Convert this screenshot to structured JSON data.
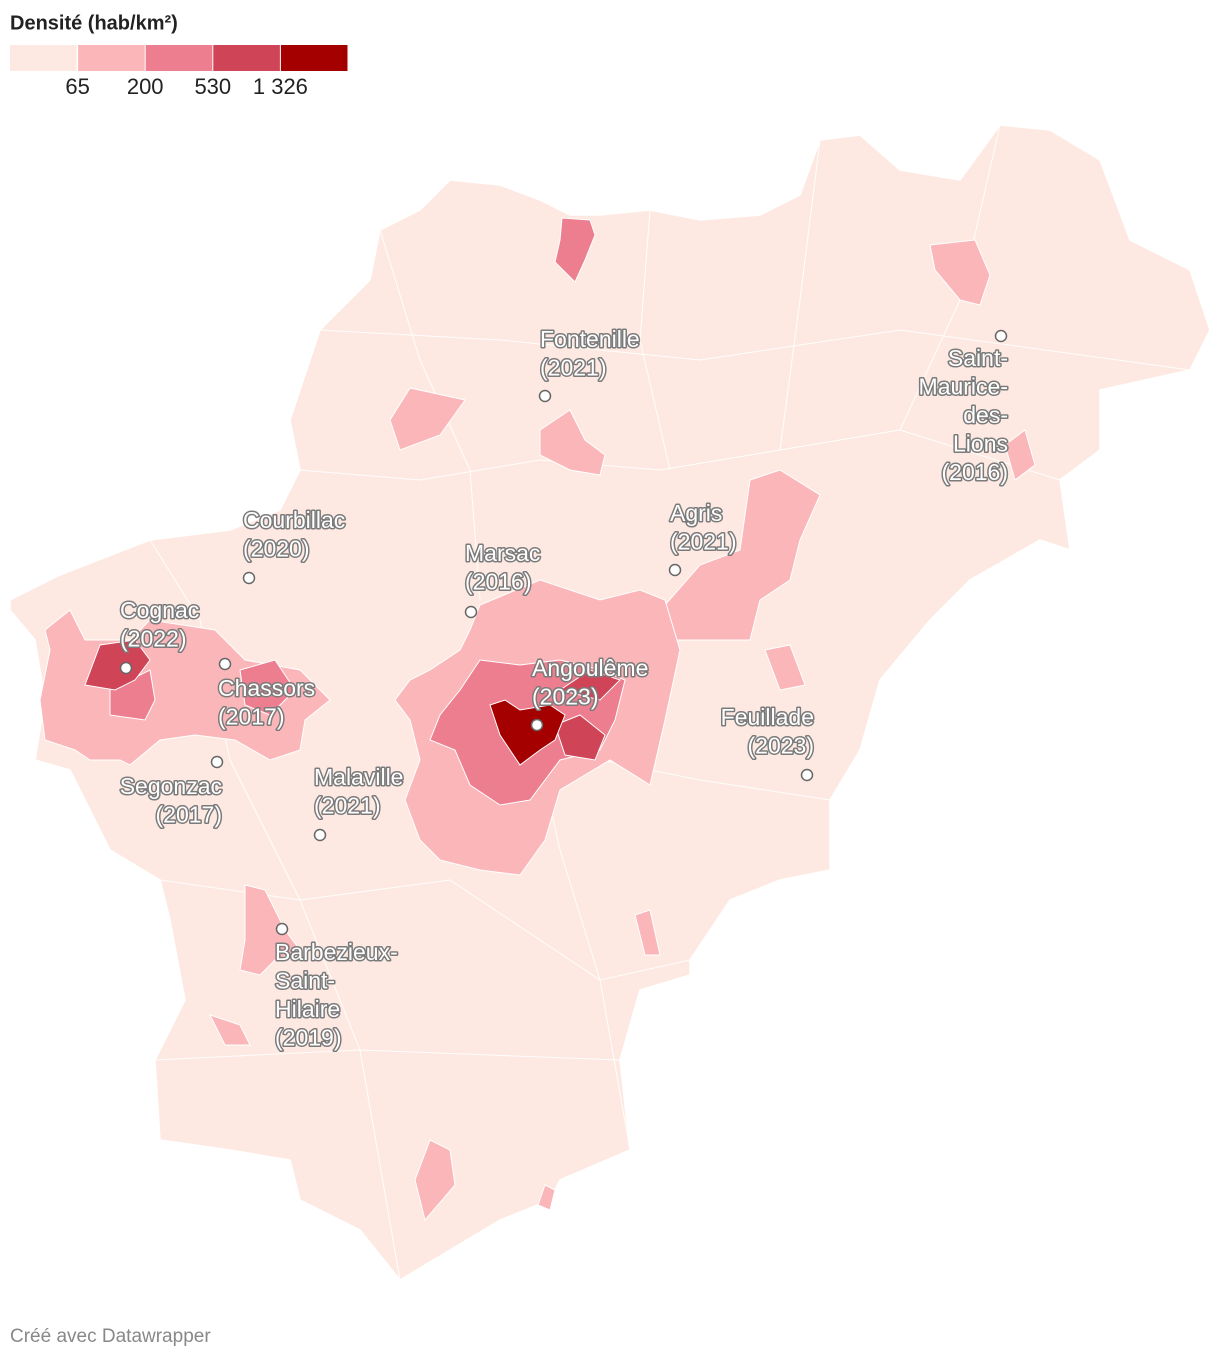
{
  "legend": {
    "title": "Densité (hab/km²)",
    "colors": [
      "#fde9e1",
      "#fbb6b9",
      "#ec7e8f",
      "#cf4557",
      "#a50000"
    ],
    "thresholds": [
      65,
      200,
      530,
      {
        "value": 1326,
        "label": "1 326"
      }
    ]
  },
  "cities": [
    {
      "lines": [
        "Fontenille",
        "(2021)"
      ]
    },
    {
      "lines": [
        "Saint-",
        "Maurice-",
        "des-",
        "Lions",
        "(2016)"
      ]
    },
    {
      "lines": [
        "Agris",
        "(2021)"
      ]
    },
    {
      "lines": [
        "Courbillac",
        "(2020)"
      ]
    },
    {
      "lines": [
        "Marsac",
        "(2016)"
      ]
    },
    {
      "lines": [
        "Cognac",
        "(2022)"
      ]
    },
    {
      "lines": [
        "Chassors",
        "(2017)"
      ]
    },
    {
      "lines": [
        "Angoulême",
        "(2023)"
      ]
    },
    {
      "lines": [
        "Feuillade",
        "(2023)"
      ]
    },
    {
      "lines": [
        "Segonzac",
        "(2017)"
      ]
    },
    {
      "lines": [
        "Malaville",
        "(2021)"
      ]
    },
    {
      "lines": [
        "Barbezieux-",
        "Saint-",
        "Hilaire",
        "(2019)"
      ]
    }
  ],
  "footer": "Créé avec Datawrapper"
}
